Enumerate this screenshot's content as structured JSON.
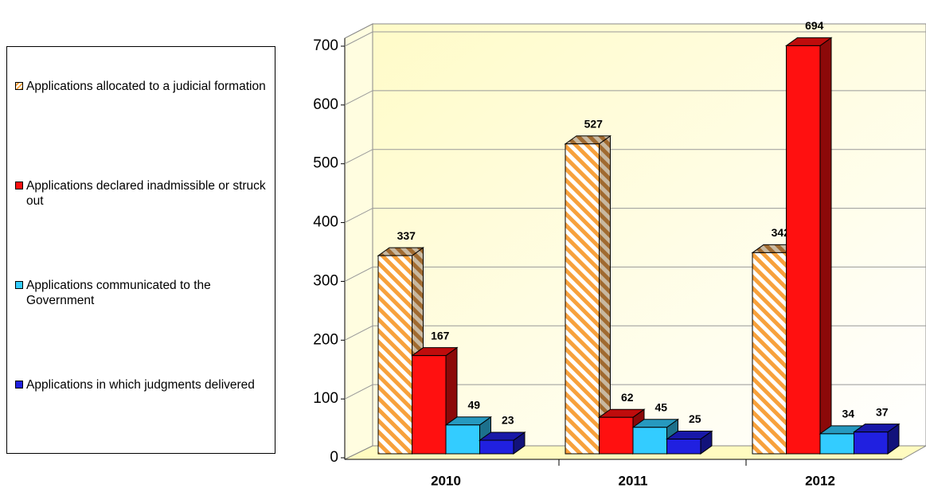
{
  "chart_data": {
    "type": "bar3d",
    "categories": [
      "2010",
      "2011",
      "2012"
    ],
    "series": [
      {
        "name": "Applications allocated  to a judicial formation",
        "color": "#f7a13c",
        "values": [
          337,
          527,
          342
        ]
      },
      {
        "name": "Applications declared inadmissible or struck out",
        "color": "#ff1010",
        "values": [
          167,
          62,
          694
        ]
      },
      {
        "name": "Applications communicated to the Government",
        "color": "#33ccff",
        "values": [
          49,
          45,
          34
        ]
      },
      {
        "name": "Applications in which judgments delivered",
        "color": "#2020e0",
        "values": [
          23,
          25,
          37
        ]
      }
    ],
    "ylim": [
      0,
      700
    ],
    "yticks": [
      0,
      100,
      200,
      300,
      400,
      500,
      600,
      700
    ],
    "grid": true,
    "legend": "left"
  }
}
